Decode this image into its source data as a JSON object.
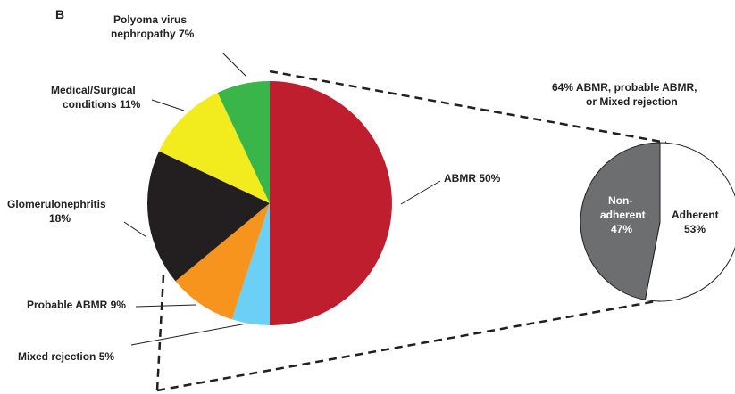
{
  "panel_label": "B",
  "chart_data": [
    {
      "type": "pie",
      "title": "",
      "slices": [
        {
          "label": "ABMR",
          "value": 50,
          "value_label": "ABMR 50%",
          "color": "#bf1e2e"
        },
        {
          "label": "Mixed rejection",
          "value": 5,
          "value_label": "Mixed rejection 5%",
          "color": "#6ccff6"
        },
        {
          "label": "Probable ABMR",
          "value": 9,
          "value_label": "Probable ABMR 9%",
          "color": "#f7941d"
        },
        {
          "label": "Glomerulonephritis",
          "value": 18,
          "value_label_lines": [
            "Glomerulonephritis",
            "18%"
          ],
          "color": "#231f20"
        },
        {
          "label": "Medical/Surgical conditions",
          "value": 11,
          "value_label_lines": [
            "Medical/Surgical",
            "conditions 11%"
          ],
          "color": "#f2eb1d"
        },
        {
          "label": "Polyoma virus nephropathy",
          "value": 7,
          "value_label_lines": [
            "Polyoma virus",
            "nephropathy  7%"
          ],
          "color": "#39b54a"
        }
      ]
    },
    {
      "type": "pie",
      "title_lines": [
        "64%  ABMR, probable ABMR,",
        "or Mixed rejection"
      ],
      "slices": [
        {
          "label": "Adherent",
          "value": 53,
          "value_label_lines": [
            "Adherent",
            "53%"
          ],
          "color": "#ffffff"
        },
        {
          "label": "Non-adherent",
          "value": 47,
          "value_label_lines": [
            "Non-",
            "adherent",
            "47%"
          ],
          "color": "#6d6e70"
        }
      ]
    }
  ],
  "colors": {
    "outline": "#231f20",
    "leader": "#231f20",
    "text_light": "#ffffff"
  }
}
